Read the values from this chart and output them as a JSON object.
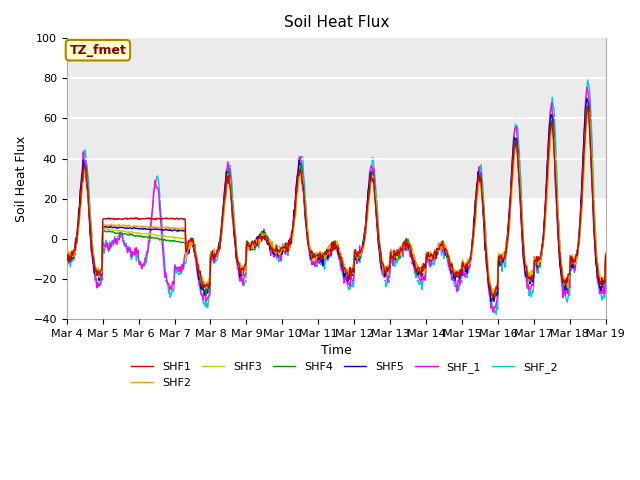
{
  "title": "Soil Heat Flux",
  "xlabel": "Time",
  "ylabel": "Soil Heat Flux",
  "ylim": [
    -40,
    100
  ],
  "x_tick_labels": [
    "Mar 4",
    "Mar 5",
    "Mar 6",
    "Mar 7",
    "Mar 8",
    "Mar 9",
    "Mar 10",
    "Mar 11",
    "Mar 12",
    "Mar 13",
    "Mar 14",
    "Mar 15",
    "Mar 16",
    "Mar 17",
    "Mar 18",
    "Mar 19"
  ],
  "series_colors": {
    "SHF1": "#cc0000",
    "SHF2": "#ff9900",
    "SHF3": "#cccc00",
    "SHF4": "#009900",
    "SHF5": "#0000cc",
    "SHF_1": "#ff00ff",
    "SHF_2": "#00cccc"
  },
  "annotation_text": "TZ_fmet",
  "annotation_color": "#880000",
  "annotation_bg": "#ffffcc",
  "annotation_border": "#aa8800",
  "plot_bg": "#f0f0f0",
  "upper_band_color": "#e0e0e0",
  "grid_color": "#dddddd",
  "title_fontsize": 11,
  "label_fontsize": 9,
  "tick_fontsize": 8,
  "legend_fontsize": 8,
  "line_width": 1.0
}
